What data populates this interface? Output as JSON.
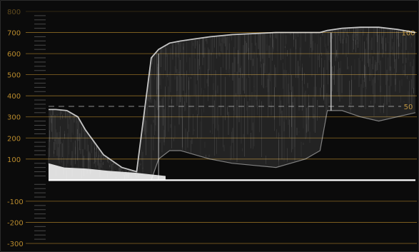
{
  "scope": {
    "type": "waveform",
    "graticule_color": "#b88a2c",
    "graticule_dim_color": "#5f4a1e",
    "trace_color": "#ffffff",
    "background_color": "#0b0b0b"
  },
  "chart_data": {
    "type": "area",
    "title": "",
    "xlabel": "",
    "ylabel": "",
    "ylim": [
      -320,
      820
    ],
    "grid": true,
    "left_axis_ticks": [
      800,
      700,
      600,
      500,
      400,
      300,
      200,
      100,
      -100,
      -200,
      -300
    ],
    "right_axis_ticks": [
      {
        "value": 700,
        "label": "100"
      },
      {
        "value": 350,
        "label": "50"
      }
    ],
    "dashed_reference": 350,
    "baseline": 0,
    "x": [
      0,
      0.02,
      0.05,
      0.08,
      0.1,
      0.15,
      0.2,
      0.24,
      0.28,
      0.3,
      0.33,
      0.36,
      0.4,
      0.44,
      0.5,
      0.56,
      0.62,
      0.7,
      0.74,
      0.76,
      0.8,
      0.85,
      0.9,
      0.95,
      1.0
    ],
    "series": [
      {
        "role": "upper",
        "values": [
          335,
          335,
          330,
          300,
          240,
          120,
          60,
          40,
          580,
          620,
          650,
          660,
          670,
          680,
          690,
          695,
          700,
          700,
          700,
          710,
          720,
          725,
          725,
          715,
          700
        ]
      },
      {
        "role": "lower",
        "values": [
          0,
          0,
          0,
          0,
          0,
          0,
          0,
          0,
          0,
          100,
          140,
          140,
          120,
          100,
          80,
          70,
          60,
          100,
          140,
          330,
          330,
          300,
          280,
          300,
          320
        ]
      }
    ]
  }
}
